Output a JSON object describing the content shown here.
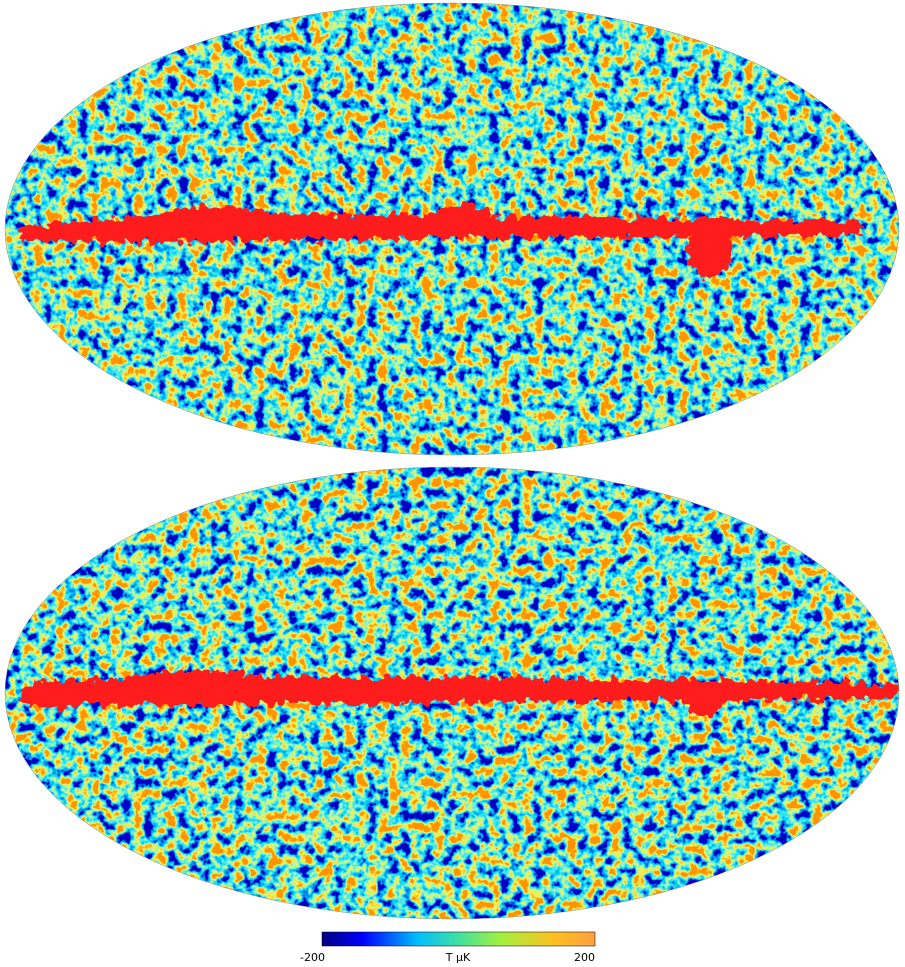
{
  "colorbar": {
    "labels": [
      "-200",
      "T µK",
      "200"
    ]
  }
}
